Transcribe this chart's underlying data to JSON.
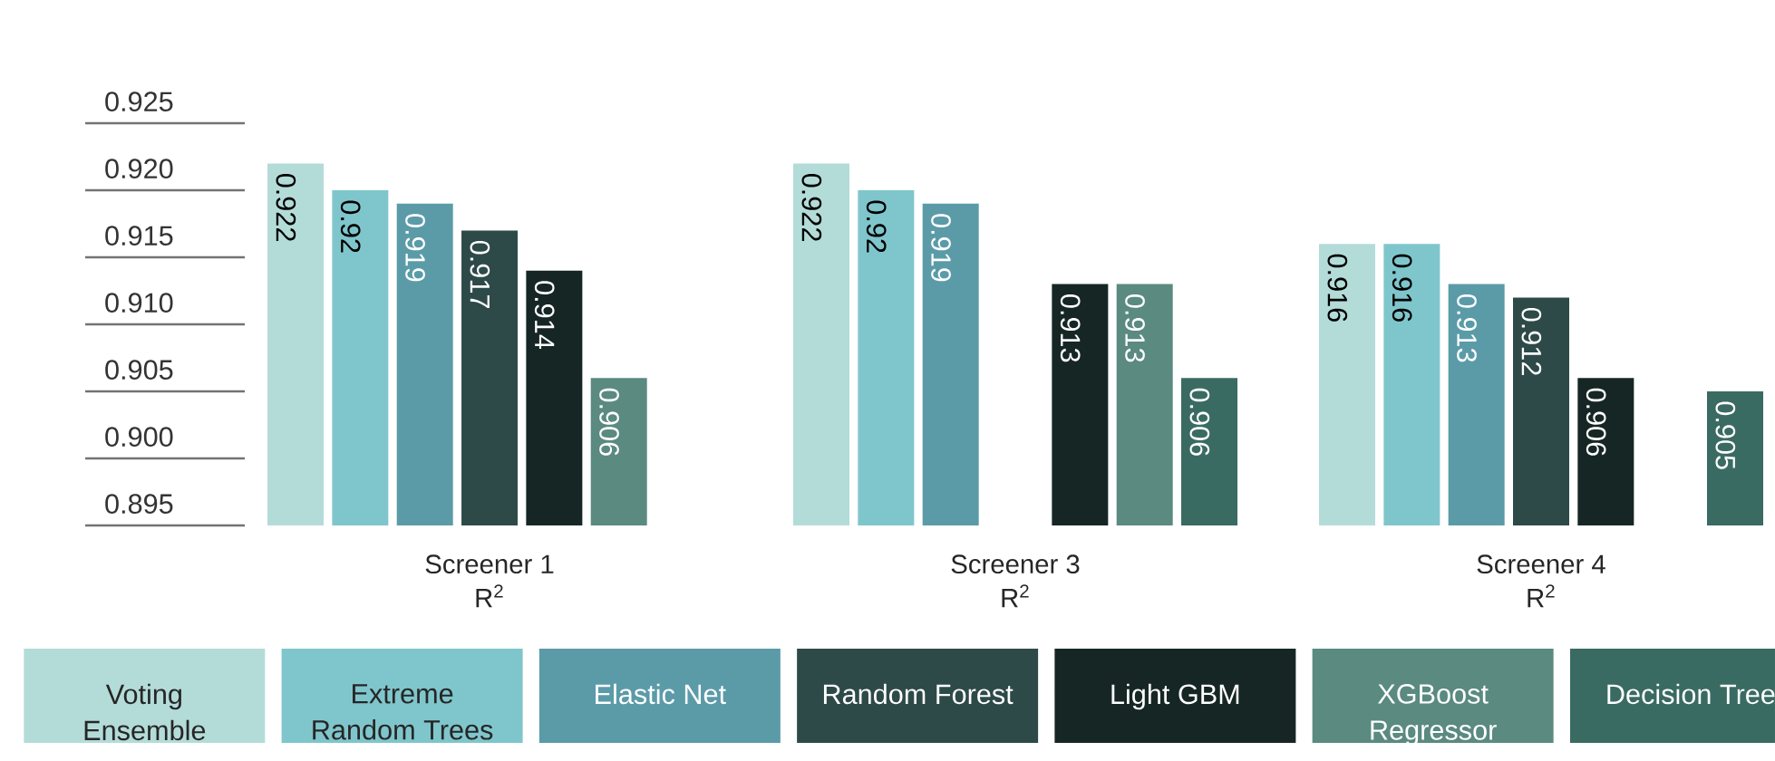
{
  "chart_data": {
    "type": "bar",
    "categories": [
      "Screener 1 R$^{2}$",
      "Screener 3 R$^{2}$",
      "Screener 4 R$^{2}$"
    ],
    "series": [
      {
        "name": "Voting Ensemble",
        "color": "#b3dcd9",
        "values": [
          0.922,
          0.922,
          0.916
        ]
      },
      {
        "name": "Extreme Random Trees",
        "color": "#7fc6cc",
        "values": [
          0.92,
          0.92,
          0.916
        ]
      },
      {
        "name": "Elastic Net",
        "color": "#5b9ba8",
        "values": [
          0.919,
          0.919,
          0.913
        ]
      },
      {
        "name": "Random Forest",
        "color": "#2d4a48",
        "values": [
          0.917,
          null,
          0.912
        ]
      },
      {
        "name": "Light GBM",
        "color": "#162624",
        "values": [
          0.914,
          0.913,
          0.906
        ]
      },
      {
        "name": "XGBoost Regressor",
        "color": "#5a8a80",
        "values": [
          0.906,
          0.913,
          null
        ]
      },
      {
        "name": "Decision Tree",
        "color": "#3a6b62",
        "values": [
          null,
          0.906,
          0.905
        ]
      }
    ],
    "ylim": [
      0.895,
      0.925
    ],
    "yticks": [
      {
        "value": 0.895,
        "label": "0.895"
      },
      {
        "value": 0.9,
        "label": "0.900"
      },
      {
        "value": 0.905,
        "label": "0.905"
      },
      {
        "value": 0.91,
        "label": "0.910"
      },
      {
        "value": 0.915,
        "label": "0.915"
      },
      {
        "value": 0.92,
        "label": "0.920"
      },
      {
        "value": 0.925,
        "label": "0.925"
      }
    ],
    "data_labels": true,
    "legend": "bottom",
    "grid": true
  }
}
